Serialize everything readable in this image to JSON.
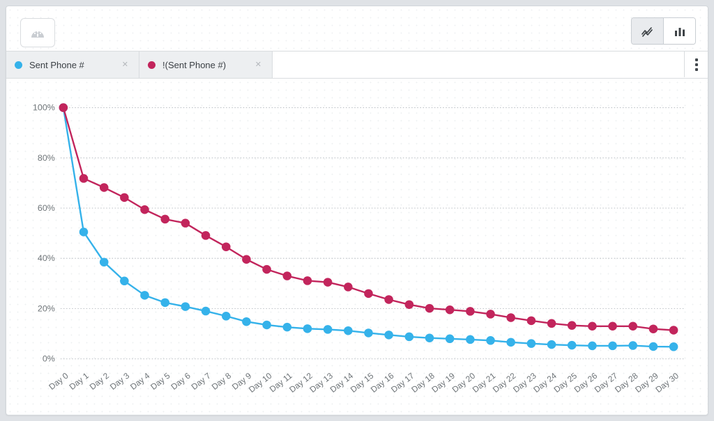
{
  "toolbar": {
    "dashboard_button": {
      "icon": "gauge-icon"
    },
    "chart_type_toggle": {
      "options": [
        {
          "icon": "line-chart-icon",
          "selected": true
        },
        {
          "icon": "bar-chart-icon",
          "selected": false
        }
      ]
    }
  },
  "tabs": [
    {
      "label": "Sent Phone #",
      "color": "#35b2ea"
    },
    {
      "label": "!(Sent Phone #)",
      "color": "#c2255c"
    }
  ],
  "ui": {
    "tab_close_glyph": "✕",
    "kebab_icon": "vertical-ellipsis-icon"
  },
  "chart_data": {
    "type": "line",
    "title": "",
    "xlabel": "",
    "ylabel": "",
    "ylim": [
      0,
      100
    ],
    "grid": "horizontal-dotted",
    "legend_position": "tabs-top",
    "y_ticks": [
      "0%",
      "20%",
      "40%",
      "60%",
      "80%",
      "100%"
    ],
    "x": [
      "Day 0",
      "Day 1",
      "Day 2",
      "Day 3",
      "Day 4",
      "Day 5",
      "Day 6",
      "Day 7",
      "Day 8",
      "Day 9",
      "Day 10",
      "Day 11",
      "Day 12",
      "Day 13",
      "Day 14",
      "Day 15",
      "Day 16",
      "Day 17",
      "Day 18",
      "Day 19",
      "Day 20",
      "Day 21",
      "Day 22",
      "Day 23",
      "Day 24",
      "Day 25",
      "Day 26",
      "Day 27",
      "Day 28",
      "Day 29",
      "Day 30"
    ],
    "series": [
      {
        "name": "Sent Phone #",
        "color": "#35b2ea",
        "values": [
          100,
          50.5,
          38.5,
          31.0,
          25.3,
          22.4,
          20.8,
          19.0,
          17.0,
          14.8,
          13.5,
          12.6,
          12.0,
          11.7,
          11.2,
          10.3,
          9.5,
          8.8,
          8.3,
          8.0,
          7.7,
          7.3,
          6.6,
          6.1,
          5.7,
          5.4,
          5.2,
          5.2,
          5.3,
          4.9,
          4.8
        ]
      },
      {
        "name": "!(Sent Phone #)",
        "color": "#c2255c",
        "values": [
          100,
          71.8,
          68.2,
          64.2,
          59.4,
          55.6,
          54.0,
          49.1,
          44.6,
          39.6,
          35.6,
          33.0,
          31.1,
          30.5,
          28.6,
          26.0,
          23.6,
          21.6,
          20.1,
          19.5,
          18.9,
          17.8,
          16.4,
          15.2,
          14.1,
          13.3,
          13.0,
          13.0,
          13.0,
          11.9,
          11.4
        ]
      }
    ]
  }
}
